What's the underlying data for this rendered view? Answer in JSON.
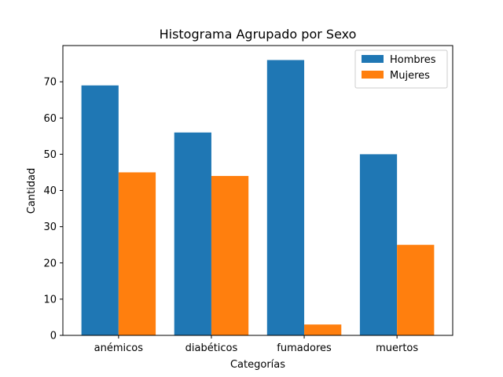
{
  "chart_data": {
    "type": "bar",
    "title": "Histograma Agrupado por Sexo",
    "xlabel": "Categorías",
    "ylabel": "Cantidad",
    "categories": [
      "anémicos",
      "diabéticos",
      "fumadores",
      "muertos"
    ],
    "series": [
      {
        "name": "Hombres",
        "values": [
          69,
          56,
          76,
          50
        ],
        "color": "#1f77b4"
      },
      {
        "name": "Mujeres",
        "values": [
          45,
          44,
          3,
          25
        ],
        "color": "#ff7f0e"
      }
    ],
    "ylim": [
      0,
      80
    ],
    "yticks": [
      0,
      10,
      20,
      30,
      40,
      50,
      60,
      70
    ],
    "grid": false,
    "legend_position": "top-right"
  }
}
